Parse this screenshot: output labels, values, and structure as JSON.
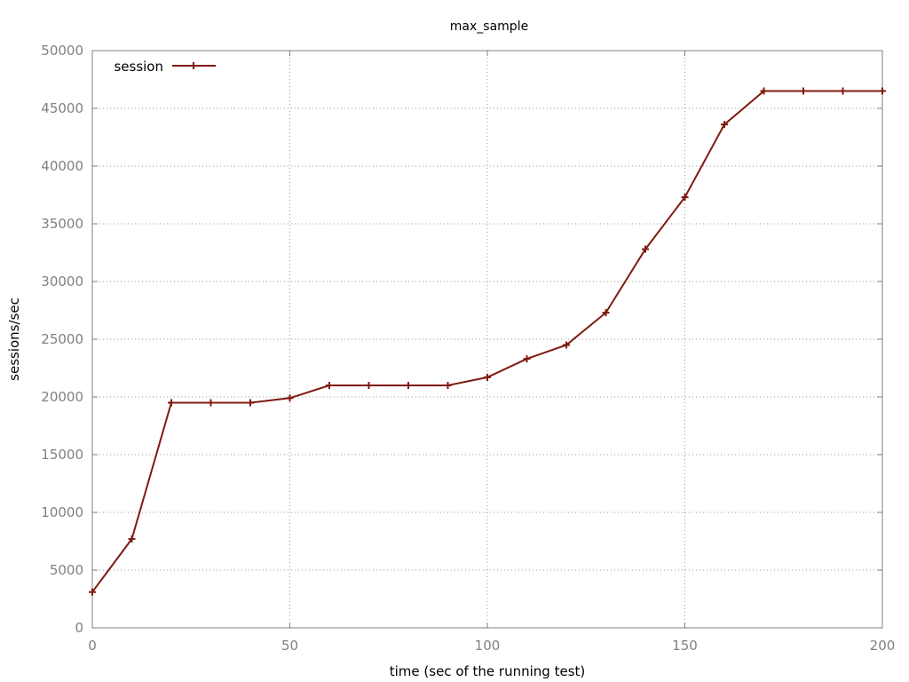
{
  "chart_data": {
    "type": "line",
    "title": "max_sample",
    "xlabel": "time (sec of the running test)",
    "ylabel": "sessions/sec",
    "xlim": [
      0,
      200
    ],
    "ylim": [
      0,
      50000
    ],
    "xticks": [
      0,
      50,
      100,
      150,
      200
    ],
    "yticks": [
      0,
      5000,
      10000,
      15000,
      20000,
      25000,
      30000,
      35000,
      40000,
      45000,
      50000
    ],
    "grid": true,
    "legend": "top-left",
    "series": [
      {
        "name": "session",
        "color": "#7f1a10",
        "marker": "plus",
        "x": [
          0,
          10,
          20,
          30,
          40,
          50,
          60,
          70,
          80,
          90,
          100,
          110,
          120,
          130,
          140,
          150,
          160,
          170,
          180,
          190,
          200
        ],
        "y": [
          3100,
          7700,
          19500,
          19500,
          19500,
          19900,
          21000,
          21000,
          21000,
          21000,
          21700,
          23300,
          24500,
          27300,
          32800,
          37300,
          43600,
          46500,
          46500,
          46500,
          46500
        ]
      }
    ]
  }
}
